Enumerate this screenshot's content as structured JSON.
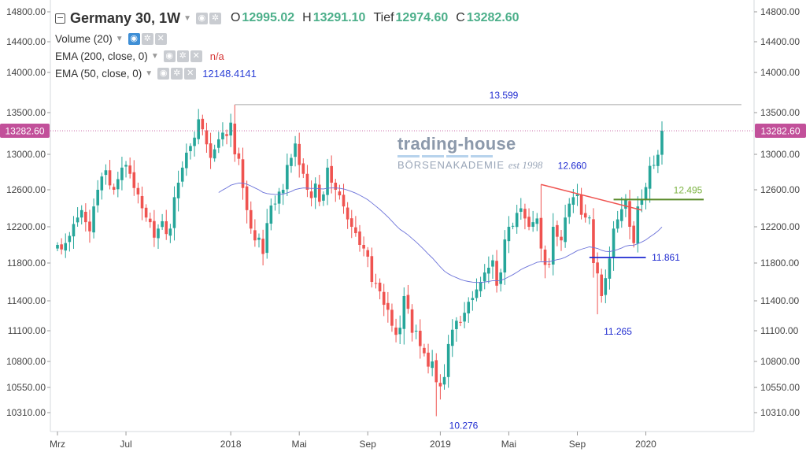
{
  "header": {
    "symbol": "Germany 30, 1W",
    "ohlc": [
      {
        "label": "O",
        "value": "12995.02"
      },
      {
        "label": "H",
        "value": "13291.10"
      },
      {
        "label": "Tief",
        "value": "12974.60"
      },
      {
        "label": "C",
        "value": "13282.60"
      }
    ]
  },
  "indicators": [
    {
      "label": "Volume (20)",
      "value": ""
    },
    {
      "label": "EMA (200, close, 0)",
      "value": "n/a"
    },
    {
      "label": "EMA (50, close, 0)",
      "value": "12148.4141"
    }
  ],
  "watermark": {
    "line1": "trading-house",
    "line2": "BÖRSENAKADEMIE",
    "line3": "est 1998"
  },
  "colors": {
    "up": "#26a69a",
    "down": "#ef5350",
    "ema": "#6b72d9",
    "price_badge": "#c2509a",
    "annotation_blue": "#1e2ad0",
    "annotation_green": "#5a8a2a"
  },
  "chart_data": {
    "type": "candlestick",
    "ylim": [
      10250,
      14850
    ],
    "y_ticks": [
      14800,
      14400,
      14000,
      13500,
      13000,
      12600,
      12200,
      11800,
      11400,
      11100,
      10800,
      10550,
      10310
    ],
    "y_tick_labels": [
      "14800.00",
      "14400.00",
      "14000.00",
      "13500.00",
      "13000.00",
      "12600.00",
      "12200.00",
      "11800.00",
      "11400.00",
      "11100.00",
      "10800.00",
      "10550.00",
      "10310.00"
    ],
    "x_ticks": [
      {
        "label": "Mrz",
        "pos": 0
      },
      {
        "label": "Jul",
        "pos": 17
      },
      {
        "label": "2018",
        "pos": 43
      },
      {
        "label": "Mai",
        "pos": 60
      },
      {
        "label": "Sep",
        "pos": 77
      },
      {
        "label": "2019",
        "pos": 95
      },
      {
        "label": "Mai",
        "pos": 112
      },
      {
        "label": "Sep",
        "pos": 129
      },
      {
        "label": "2020",
        "pos": 146
      }
    ],
    "last_price": "13282.60",
    "last_price_value": 13282.6,
    "closes": [
      12000,
      11950,
      12020,
      12100,
      12230,
      12300,
      12380,
      12250,
      12150,
      12420,
      12600,
      12750,
      12820,
      12650,
      12600,
      12720,
      12850,
      12880,
      12780,
      12620,
      12550,
      12400,
      12300,
      12250,
      12080,
      12180,
      12260,
      12120,
      12180,
      12520,
      12680,
      12850,
      13020,
      13100,
      13200,
      13420,
      13300,
      13120,
      12960,
      13060,
      13180,
      13260,
      13220,
      13380,
      13000,
      12950,
      12620,
      12380,
      12180,
      12050,
      12080,
      11900,
      12240,
      12430,
      12450,
      12580,
      12600,
      12880,
      12960,
      13130,
      12880,
      12780,
      12600,
      12510,
      12670,
      12470,
      12550,
      12850,
      12680,
      12600,
      12540,
      12420,
      12280,
      12200,
      12130,
      12000,
      11960,
      11870,
      11600,
      11580,
      11500,
      11360,
      11310,
      11150,
      11060,
      11130,
      11450,
      11320,
      11080,
      11100,
      10950,
      10880,
      10750,
      10800,
      10600,
      10560,
      10650,
      10970,
      11110,
      11200,
      11180,
      11280,
      11390,
      11430,
      11520,
      11600,
      11700,
      11750,
      11830,
      11560,
      11700,
      12060,
      12200,
      12210,
      12350,
      12400,
      12290,
      12200,
      12250,
      12290,
      11960,
      11780,
      11790,
      12200,
      12090,
      12050,
      12300,
      12450,
      12520,
      12550,
      12330,
      12300,
      12300,
      11800,
      11690,
      11450,
      11640,
      11850,
      12180,
      12280,
      12390,
      12490,
      12200,
      12020,
      12420,
      12500,
      12630,
      12870,
      12880,
      12995,
      13282.6
    ],
    "annotations": [
      {
        "text": "13.599",
        "value": 13599
      },
      {
        "text": "12.660",
        "value": 12660
      },
      {
        "text": "12.495",
        "value": 12495
      },
      {
        "text": "11.861",
        "value": 11861
      },
      {
        "text": "11.265",
        "value": 11265
      },
      {
        "text": "10.276",
        "value": 10276
      }
    ]
  }
}
